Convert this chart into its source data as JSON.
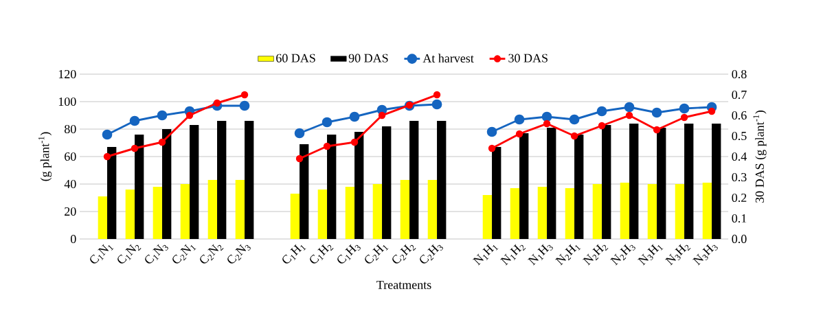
{
  "chart_data": {
    "type": "bar",
    "xlabel": "Treatments",
    "ylabel": "(g  plant$^{-1}$)",
    "y2label": "30 DAS (g  plant$^{-1}$)",
    "categories": [
      "C$_{1}$N$_{1}$",
      "C$_{1}$N$_{2}$",
      "C$_{1}$N$_{3}$",
      "C$_{2}$N$_{1}$",
      "C$_{2}$N$_{2}$",
      "C$_{2}$N$_{3}$",
      null,
      "C$_{1}$H$_{1}$",
      "C$_{1}$H$_{2}$",
      "C$_{1}$H$_{3}$",
      "C$_{2}$H$_{1}$",
      "C$_{2}$H$_{2}$",
      "C$_{2}$H$_{3}$",
      null,
      "N$_{1}$H$_{1}$",
      "N$_{1}$H$_{2}$",
      "N$_{1}$H$_{3}$",
      "N$_{2}$H$_{1}$",
      "N$_{2}$H$_{2}$",
      "N$_{2}$H$_{3}$",
      "N$_{3}$H$_{1}$",
      "N$_{3}$H$_{2}$",
      "N$_{3}$H$_{3}$"
    ],
    "series": [
      {
        "name": "60 DAS",
        "color": "#ffff00",
        "values": [
          31,
          36,
          38,
          40,
          43,
          43,
          null,
          33,
          36,
          38,
          40,
          43,
          43,
          null,
          32,
          37,
          38,
          37,
          40,
          41,
          40,
          40,
          41
        ]
      },
      {
        "name": "90 DAS",
        "color": "#000000",
        "values": [
          67,
          76,
          80,
          83,
          86,
          86,
          null,
          69,
          76,
          78,
          82,
          86,
          86,
          null,
          67,
          77,
          81,
          76,
          83,
          84,
          81,
          84,
          84
        ]
      },
      {
        "name": "At harvest",
        "type": "line",
        "color": "#1565c0",
        "values": [
          76,
          86,
          90,
          93,
          97,
          97,
          null,
          77,
          85,
          89,
          94,
          97,
          98,
          null,
          78,
          87,
          89,
          87,
          93,
          96,
          92,
          95,
          96
        ]
      },
      {
        "name": "30 DAS",
        "type": "line",
        "color": "#ff0000",
        "axis": "y2",
        "values": [
          0.4,
          0.44,
          0.47,
          0.6,
          0.66,
          0.7,
          null,
          0.39,
          0.45,
          0.47,
          0.6,
          0.65,
          0.7,
          null,
          0.44,
          0.51,
          0.56,
          0.5,
          0.55,
          0.6,
          0.53,
          0.59,
          0.62
        ]
      }
    ],
    "ylim": [
      0,
      120
    ],
    "yticks": [
      0,
      20,
      40,
      60,
      80,
      100,
      120
    ],
    "y2lim": [
      0,
      0.8
    ],
    "y2ticks": [
      {
        "value": 0,
        "label": "0.0"
      },
      0.1,
      0.2,
      0.3,
      0.4,
      0.5,
      0.6,
      0.7,
      0.8
    ],
    "grid": "y",
    "legend": "top",
    "marker": "circle"
  }
}
